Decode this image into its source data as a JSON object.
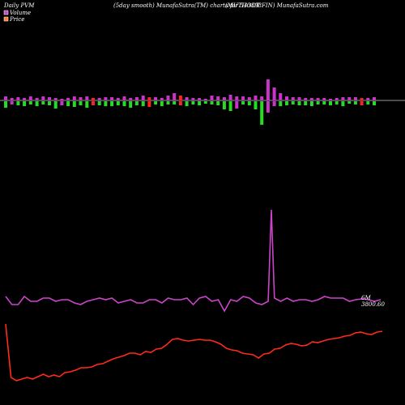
{
  "header": {
    "left": "Daily PVM",
    "center": "(5day smooth) MunafaSutra(TM) charts for 533398",
    "right": "(MUTHOOT FIN) MunafaSutra.com"
  },
  "legend": [
    {
      "name": "Volume",
      "color": "#cc44cc"
    },
    {
      "name": "Price",
      "color": "#ff7a33"
    }
  ],
  "colors": {
    "background": "#000000",
    "baseline": "#999999",
    "volume_line": "#cc44cc",
    "price_line": "#ff2a1a",
    "bar_up": "#cc33cc",
    "bar_down": "#22dd22",
    "bar_red": "#ff2222"
  },
  "labels": {
    "volume_last": "6M",
    "price_last": "3800.60"
  },
  "chart_data": {
    "type": "line",
    "title": "",
    "xlabel": "",
    "ylabel": "",
    "bars": [
      {
        "v": 1,
        "c": "green"
      },
      {
        "v": 1,
        "c": "green"
      },
      {
        "v": 0.55,
        "c": "purple"
      },
      {
        "v": 0.7,
        "c": "green"
      },
      {
        "v": 0.6,
        "c": "green"
      },
      {
        "v": 0.6,
        "c": "green"
      },
      {
        "v": -0.5,
        "c": "red"
      },
      {
        "v": 0.4,
        "c": "green"
      },
      {
        "v": 0.7,
        "c": "green"
      },
      {
        "v": 0.4,
        "c": "green"
      },
      {
        "v": 0.8,
        "c": "green"
      },
      {
        "v": 0.9,
        "c": "green"
      },
      {
        "v": 0.6,
        "c": "green"
      },
      {
        "v": 0.6,
        "c": "green"
      },
      {
        "v": -0.5,
        "c": "red"
      },
      {
        "v": 0.5,
        "c": "green"
      },
      {
        "v": 0.6,
        "c": "green"
      },
      {
        "v": 0.4,
        "c": "green"
      },
      {
        "v": 0.7,
        "c": "green"
      },
      {
        "v": 0.6,
        "c": "green"
      },
      {
        "v": 0.6,
        "c": "green"
      },
      {
        "v": 0.9,
        "c": "green"
      },
      {
        "v": -0.7,
        "c": "red"
      },
      {
        "v": 0.6,
        "c": "green"
      },
      {
        "v": 0.7,
        "c": "green"
      },
      {
        "v": 0.5,
        "c": "green"
      },
      {
        "v": 0.6,
        "c": "green"
      },
      {
        "v": -0.7,
        "c": "red"
      },
      {
        "v": 0.5,
        "c": "green"
      },
      {
        "v": 1,
        "c": "green"
      },
      {
        "v": 1,
        "c": "green"
      },
      {
        "v": 0.5,
        "c": "green"
      },
      {
        "v": 0.5,
        "c": "green"
      },
      {
        "v": 0.4,
        "c": "green"
      },
      {
        "v": 0.6,
        "c": "green"
      },
      {
        "v": 0.6,
        "c": "green"
      },
      {
        "v": 0.5,
        "c": "green"
      },
      {
        "v": 0.4,
        "c": "green"
      },
      {
        "v": 0.5,
        "c": "green"
      },
      {
        "v": 0.6,
        "c": "green"
      },
      {
        "v": 1.2,
        "c": "green"
      },
      {
        "v": 1.2,
        "c": "green"
      },
      {
        "v": 0.9,
        "c": "green"
      },
      {
        "v": 0.8,
        "c": "green"
      },
      {
        "v": 1.0,
        "c": "green"
      },
      {
        "v": 1.2,
        "c": "green"
      },
      {
        "v": 1.8,
        "c": "green"
      },
      {
        "v": 1.1,
        "c": "green"
      },
      {
        "v": 0.8,
        "c": "green"
      },
      {
        "v": 0.7,
        "c": "green"
      },
      {
        "v": 0.6,
        "c": "green"
      },
      {
        "v": 0.6,
        "c": "green"
      },
      {
        "v": 0.7,
        "c": "green"
      },
      {
        "v": 0.6,
        "c": "green"
      },
      {
        "v": 0.5,
        "c": "green"
      },
      {
        "v": 0.5,
        "c": "green"
      },
      {
        "v": 0.5,
        "c": "green"
      },
      {
        "v": 0.5,
        "c": "green"
      },
      {
        "v": 0.7,
        "c": "green"
      },
      {
        "v": 0.6,
        "c": "green"
      }
    ],
    "volume_bars_up": [
      0.5,
      0.3,
      0.4,
      0.3,
      0.5,
      0.3,
      0.5,
      0.4,
      0.3,
      0.2,
      0.3,
      0.5,
      0.4,
      0.5,
      0.3,
      0.3,
      0.4,
      0.4,
      0.3,
      0.5,
      0.3,
      0.4,
      0.6,
      0.4,
      0.4,
      0.3,
      0.6,
      0.9,
      0.6,
      0.4,
      0.3,
      0.3,
      0.2,
      0.6,
      0.5,
      0.4,
      0.7,
      0.5,
      0.5,
      0.4,
      0.6,
      0.5,
      2.6,
      1.6,
      0.9,
      0.5,
      0.4,
      0.4,
      0.3,
      0.3,
      0.3,
      0.3,
      0.2,
      0.3,
      0.4,
      0.4,
      0.4,
      0.3,
      0.3,
      0.4
    ],
    "volume_bars_down": [
      0.8,
      0.4,
      0.5,
      0.6,
      0.4,
      0.6,
      0.4,
      0.5,
      0.9,
      0.5,
      0.6,
      0.7,
      0.5,
      0.8,
      0.5,
      0.5,
      0.6,
      0.6,
      0.5,
      0.6,
      0.8,
      0.5,
      0.6,
      0.7,
      0.4,
      0.6,
      0.4,
      0.4,
      0.5,
      0.6,
      0.4,
      0.5,
      0.3,
      0.4,
      0.5,
      1.0,
      1.2,
      0.9,
      0.4,
      0.5,
      1.0,
      2.9,
      1.4,
      0.6,
      0.6,
      0.5,
      0.4,
      0.5,
      0.5,
      0.6,
      0.4,
      0.4,
      0.5,
      0.4,
      0.6,
      0.3,
      0.4,
      0.5,
      0.4,
      0.5
    ],
    "volume_bar_colors": [
      "green",
      "purple",
      "green",
      "green",
      "green",
      "green",
      "green",
      "green",
      "green",
      "purple",
      "green",
      "green",
      "green",
      "green",
      "red",
      "green",
      "green",
      "green",
      "green",
      "green",
      "green",
      "green",
      "green",
      "red",
      "green",
      "green",
      "green",
      "green",
      "red",
      "green",
      "green",
      "green",
      "green",
      "green",
      "green",
      "green",
      "green",
      "purple",
      "green",
      "green",
      "green",
      "green",
      "purple",
      "purple",
      "green",
      "green",
      "green",
      "green",
      "green",
      "green",
      "green",
      "green",
      "green",
      "green",
      "green",
      "green",
      "green",
      "red",
      "green",
      "green"
    ],
    "volume_line": [
      38,
      28,
      28,
      38,
      32,
      32,
      36,
      36,
      32,
      34,
      34,
      30,
      28,
      32,
      34,
      36,
      34,
      36,
      30,
      32,
      34,
      30,
      30,
      34,
      34,
      30,
      36,
      34,
      34,
      36,
      28,
      36,
      38,
      32,
      34,
      20,
      34,
      32,
      38,
      36,
      30,
      28,
      32,
      36,
      32,
      36,
      32,
      34,
      34,
      32,
      34,
      38,
      36,
      36,
      36,
      32,
      34,
      35,
      34,
      32,
      34
    ],
    "volume_spike": 245,
    "price_line": [
      30,
      96,
      100,
      98,
      96,
      98,
      95,
      92,
      95,
      93,
      95,
      90,
      89,
      87,
      84,
      84,
      83,
      80,
      79,
      76,
      73,
      71,
      69,
      66,
      66,
      68,
      64,
      65,
      61,
      60,
      55,
      49,
      48,
      50,
      51,
      50,
      49,
      50,
      50,
      52,
      55,
      60,
      62,
      63,
      66,
      67,
      68,
      72,
      67,
      66,
      61,
      60,
      56,
      54,
      55,
      57,
      56,
      52,
      53,
      51,
      49,
      48,
      47,
      45,
      44,
      41,
      40,
      42,
      43,
      40,
      39
    ]
  }
}
